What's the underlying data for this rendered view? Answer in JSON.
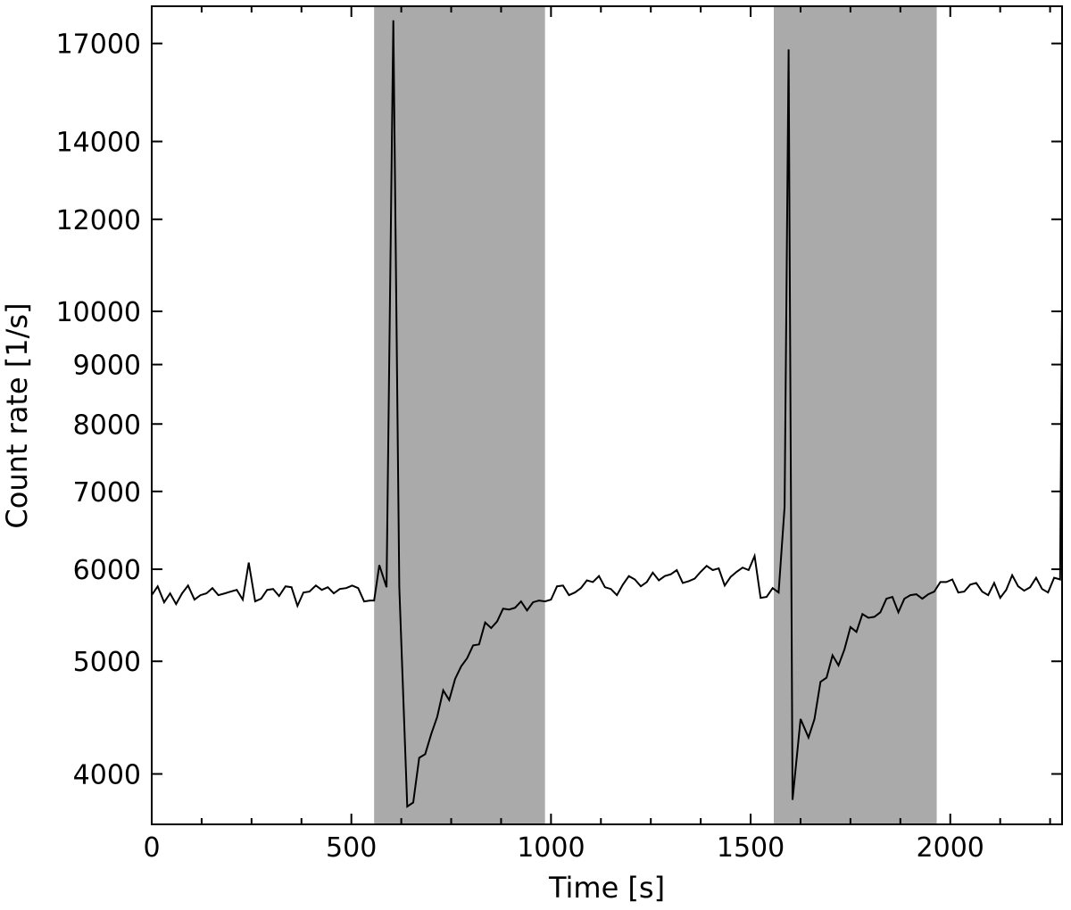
{
  "chart_data": {
    "type": "line",
    "title": "",
    "xlabel": "Time [s]",
    "ylabel": "Count rate [1/s]",
    "xlim": [
      0,
      2280
    ],
    "ylim": [
      3620,
      18300
    ],
    "y_scale": "log",
    "grid": false,
    "legend": "none",
    "x_ticks": [
      0,
      500,
      1000,
      1500,
      2000
    ],
    "x_tick_labels": [
      "0",
      "500",
      "1000",
      "1500",
      "2000"
    ],
    "y_ticks": [
      4000,
      5000,
      6000,
      7000,
      8000,
      9000,
      10000,
      12000,
      14000,
      17000
    ],
    "y_tick_labels": [
      "4000",
      "5000",
      "6000",
      "7000",
      "8000",
      "9000",
      "10000",
      "12000",
      "14000",
      "17000"
    ],
    "shaded_regions": [
      {
        "x0": 557,
        "x1": 985
      },
      {
        "x0": 1558,
        "x1": 1966
      }
    ],
    "colors": {
      "line": "#000000",
      "shade": "#aaaaaa",
      "axes": "#000000"
    },
    "series": [
      {
        "x": [
          0,
          15,
          31,
          46,
          61,
          76,
          91,
          107,
          122,
          137,
          152,
          167,
          183,
          198,
          213,
          228,
          243,
          259,
          274,
          289,
          304,
          319,
          335,
          350,
          365,
          380,
          395,
          411,
          426,
          441,
          456,
          471,
          487,
          502,
          517,
          532,
          547,
          557,
          570,
          588,
          605,
          620,
          640,
          655,
          670,
          685,
          700,
          715,
          730,
          745,
          760,
          775,
          790,
          805,
          820,
          835,
          850,
          865,
          880,
          895,
          910,
          925,
          940,
          955,
          970,
          985,
          1000,
          1015,
          1030,
          1045,
          1060,
          1075,
          1090,
          1105,
          1120,
          1135,
          1150,
          1165,
          1180,
          1195,
          1210,
          1225,
          1240,
          1255,
          1270,
          1285,
          1300,
          1315,
          1330,
          1345,
          1360,
          1375,
          1390,
          1405,
          1420,
          1435,
          1450,
          1465,
          1480,
          1495,
          1510,
          1525,
          1540,
          1555,
          1570,
          1585,
          1595,
          1605,
          1625,
          1645,
          1660,
          1675,
          1690,
          1705,
          1720,
          1735,
          1750,
          1765,
          1780,
          1795,
          1810,
          1825,
          1840,
          1855,
          1870,
          1885,
          1900,
          1915,
          1930,
          1945,
          1960,
          1975,
          1990,
          2005,
          2020,
          2035,
          2050,
          2065,
          2080,
          2095,
          2110,
          2125,
          2140,
          2155,
          2170,
          2185,
          2200,
          2215,
          2230,
          2245,
          2260,
          2275,
          2280
        ],
        "values": [
          5700,
          5800,
          5620,
          5720,
          5600,
          5720,
          5810,
          5650,
          5700,
          5720,
          5780,
          5700,
          5720,
          5740,
          5760,
          5650,
          6080,
          5630,
          5660,
          5760,
          5770,
          5690,
          5800,
          5790,
          5580,
          5730,
          5740,
          5810,
          5760,
          5790,
          5720,
          5770,
          5780,
          5810,
          5780,
          5630,
          5640,
          5640,
          6050,
          5790,
          17800,
          5790,
          3750,
          3780,
          4130,
          4160,
          4330,
          4480,
          4720,
          4630,
          4830,
          4950,
          5030,
          5160,
          5170,
          5400,
          5340,
          5410,
          5550,
          5540,
          5560,
          5630,
          5530,
          5620,
          5640,
          5630,
          5650,
          5800,
          5810,
          5700,
          5730,
          5780,
          5870,
          5850,
          5920,
          5790,
          5770,
          5700,
          5820,
          5920,
          5880,
          5800,
          5850,
          5960,
          5870,
          5920,
          5940,
          5990,
          5840,
          5860,
          5890,
          5970,
          6040,
          5990,
          6010,
          5810,
          5910,
          5970,
          6020,
          5990,
          6160,
          5670,
          5680,
          5780,
          5730,
          6790,
          16800,
          3800,
          4460,
          4300,
          4460,
          4800,
          4840,
          5060,
          4960,
          5120,
          5350,
          5300,
          5490,
          5450,
          5460,
          5510,
          5660,
          5680,
          5510,
          5660,
          5700,
          5710,
          5660,
          5710,
          5740,
          5850,
          5850,
          5880,
          5730,
          5740,
          5820,
          5840,
          5740,
          5700,
          5840,
          5670,
          5760,
          5930,
          5800,
          5750,
          5790,
          5900,
          5770,
          5730,
          5900,
          5880,
          10200
        ]
      }
    ]
  }
}
